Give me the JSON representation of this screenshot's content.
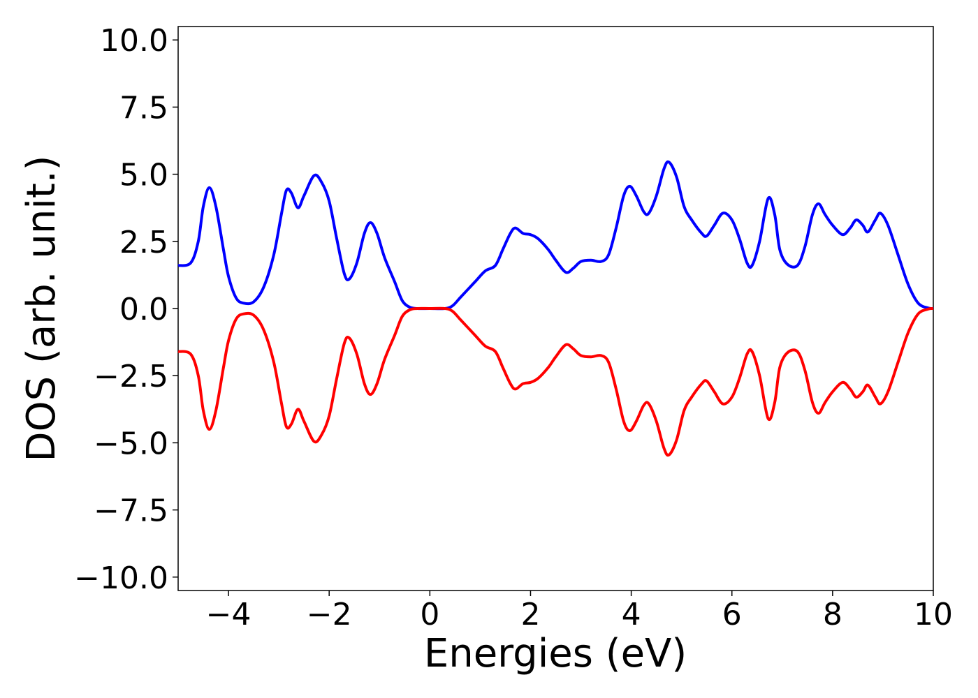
{
  "chart_data": {
    "type": "line",
    "xlabel": "Energies (eV)",
    "ylabel": "DOS (arb. unit.)",
    "x": [
      -5,
      -4.75,
      -4.6,
      -4.5,
      -4.38,
      -4.25,
      -4.1,
      -4.0,
      -3.85,
      -3.7,
      -3.5,
      -3.3,
      -3.1,
      -2.95,
      -2.85,
      -2.75,
      -2.62,
      -2.5,
      -2.3,
      -2.15,
      -2.0,
      -1.85,
      -1.7,
      -1.6,
      -1.45,
      -1.3,
      -1.18,
      -1.05,
      -0.9,
      -0.7,
      -0.55,
      -0.4,
      -0.25,
      0,
      0.3,
      0.45,
      0.6,
      0.75,
      0.9,
      1.1,
      1.3,
      1.45,
      1.6,
      1.7,
      1.85,
      2.0,
      2.15,
      2.35,
      2.5,
      2.7,
      2.85,
      3.0,
      3.2,
      3.4,
      3.55,
      3.7,
      3.85,
      3.97,
      4.1,
      4.25,
      4.35,
      4.5,
      4.65,
      4.75,
      4.9,
      5.05,
      5.2,
      5.4,
      5.5,
      5.65,
      5.82,
      6.0,
      6.15,
      6.3,
      6.4,
      6.55,
      6.72,
      6.85,
      6.95,
      7.1,
      7.3,
      7.45,
      7.6,
      7.72,
      7.85,
      8.0,
      8.2,
      8.35,
      8.47,
      8.6,
      8.7,
      8.85,
      8.95,
      9.1,
      9.3,
      9.5,
      9.7,
      9.9,
      10
    ],
    "series": [
      {
        "color": "#0000ff",
        "values": [
          1.6,
          1.7,
          2.5,
          3.8,
          4.5,
          3.8,
          2.2,
          1.2,
          0.4,
          0.2,
          0.25,
          0.8,
          2.0,
          3.5,
          4.4,
          4.3,
          3.75,
          4.2,
          4.95,
          4.7,
          4.0,
          2.6,
          1.3,
          1.1,
          1.7,
          2.8,
          3.2,
          2.8,
          1.9,
          1.0,
          0.3,
          0.05,
          0,
          0,
          0,
          0.1,
          0.4,
          0.7,
          1.0,
          1.4,
          1.6,
          2.2,
          2.8,
          3.0,
          2.8,
          2.75,
          2.6,
          2.2,
          1.8,
          1.35,
          1.5,
          1.75,
          1.8,
          1.75,
          2.0,
          3.0,
          4.2,
          4.55,
          4.2,
          3.6,
          3.55,
          4.2,
          5.2,
          5.45,
          4.9,
          3.8,
          3.3,
          2.8,
          2.7,
          3.1,
          3.55,
          3.3,
          2.6,
          1.7,
          1.6,
          2.5,
          4.1,
          3.5,
          2.2,
          1.65,
          1.6,
          2.3,
          3.5,
          3.9,
          3.5,
          3.1,
          2.75,
          3.0,
          3.3,
          3.1,
          2.85,
          3.3,
          3.55,
          3.1,
          2.0,
          0.9,
          0.2,
          0.02,
          0
        ]
      },
      {
        "color": "#ff0000",
        "values": [
          -1.6,
          -1.7,
          -2.5,
          -3.8,
          -4.5,
          -3.8,
          -2.2,
          -1.2,
          -0.4,
          -0.2,
          -0.25,
          -0.8,
          -2.0,
          -3.5,
          -4.4,
          -4.3,
          -3.75,
          -4.2,
          -4.95,
          -4.7,
          -4.0,
          -2.6,
          -1.3,
          -1.1,
          -1.7,
          -2.8,
          -3.2,
          -2.8,
          -1.9,
          -1.0,
          -0.3,
          -0.05,
          0,
          0,
          0,
          -0.1,
          -0.4,
          -0.7,
          -1.0,
          -1.4,
          -1.6,
          -2.2,
          -2.8,
          -3.0,
          -2.8,
          -2.75,
          -2.6,
          -2.2,
          -1.8,
          -1.35,
          -1.5,
          -1.75,
          -1.8,
          -1.75,
          -2.0,
          -3.0,
          -4.2,
          -4.55,
          -4.2,
          -3.6,
          -3.55,
          -4.2,
          -5.2,
          -5.45,
          -4.9,
          -3.8,
          -3.3,
          -2.8,
          -2.7,
          -3.1,
          -3.55,
          -3.3,
          -2.6,
          -1.7,
          -1.6,
          -2.5,
          -4.1,
          -3.5,
          -2.2,
          -1.65,
          -1.6,
          -2.3,
          -3.5,
          -3.9,
          -3.5,
          -3.1,
          -2.75,
          -3.0,
          -3.3,
          -3.1,
          -2.85,
          -3.3,
          -3.55,
          -3.1,
          -2.0,
          -0.9,
          -0.2,
          -0.02,
          0
        ]
      }
    ],
    "xlim": [
      -5,
      10
    ],
    "xticks": [
      {
        "value": -4,
        "label": "−4"
      },
      {
        "value": -2,
        "label": "−2"
      },
      0,
      2,
      4,
      6,
      8,
      10
    ],
    "ylim": [
      -10.5,
      10.5
    ],
    "yticks": [
      {
        "value": -10,
        "label": "−10.0"
      },
      {
        "value": -7.5,
        "label": "−7.5"
      },
      {
        "value": -5,
        "label": "−5.0"
      },
      {
        "value": -2.5,
        "label": "−2.5"
      },
      {
        "value": 0,
        "label": "0.0"
      },
      {
        "value": 2.5,
        "label": "2.5"
      },
      {
        "value": 5,
        "label": "5.0"
      },
      {
        "value": 7.5,
        "label": "7.5"
      },
      {
        "value": 10,
        "label": "10.0"
      }
    ]
  }
}
